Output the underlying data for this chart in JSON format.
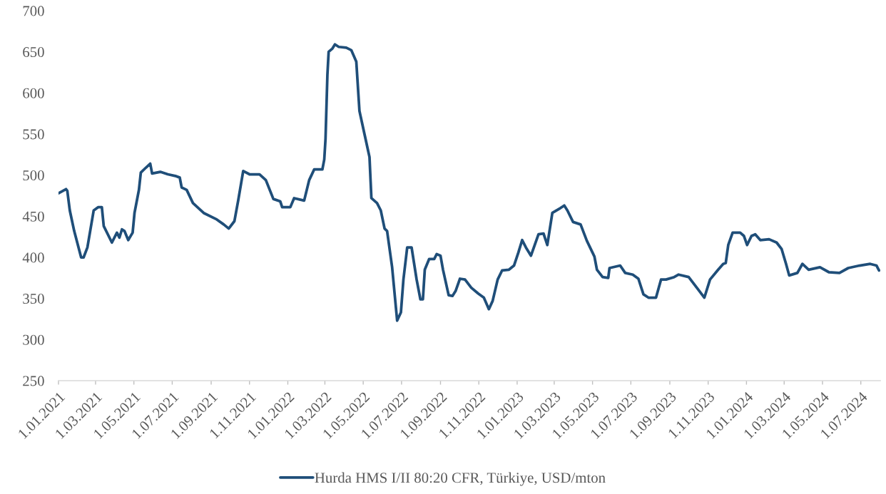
{
  "chart_data": {
    "type": "line",
    "x": [
      "2021-01-01",
      "2021-01-13",
      "2021-01-15",
      "2021-01-19",
      "2021-01-26",
      "2021-02-06",
      "2021-02-10",
      "2021-02-16",
      "2021-02-26",
      "2021-03-05",
      "2021-03-11",
      "2021-03-14",
      "2021-03-27",
      "2021-04-04",
      "2021-04-08",
      "2021-04-12",
      "2021-04-16",
      "2021-04-22",
      "2021-04-29",
      "2021-05-02",
      "2021-05-09",
      "2021-05-12",
      "2021-05-20",
      "2021-05-27",
      "2021-05-30",
      "2021-06-12",
      "2021-06-24",
      "2021-07-06",
      "2021-07-13",
      "2021-07-16",
      "2021-07-24",
      "2021-08-03",
      "2021-08-20",
      "2021-09-10",
      "2021-09-21",
      "2021-09-29",
      "2021-10-08",
      "2021-10-14",
      "2021-10-22",
      "2021-11-01",
      "2021-11-17",
      "2021-11-27",
      "2021-12-09",
      "2021-12-20",
      "2021-12-23",
      "2022-01-05",
      "2022-01-11",
      "2022-01-27",
      "2022-02-04",
      "2022-02-12",
      "2022-02-25",
      "2022-02-28",
      "2022-03-02",
      "2022-03-05",
      "2022-03-07",
      "2022-03-13",
      "2022-03-17",
      "2022-03-23",
      "2022-04-04",
      "2022-04-12",
      "2022-04-20",
      "2022-04-25",
      "2022-05-03",
      "2022-05-11",
      "2022-05-14",
      "2022-05-23",
      "2022-05-29",
      "2022-06-04",
      "2022-06-08",
      "2022-06-16",
      "2022-06-24",
      "2022-06-30",
      "2022-07-04",
      "2022-07-10",
      "2022-07-17",
      "2022-07-25",
      "2022-07-31",
      "2022-08-04",
      "2022-08-07",
      "2022-08-14",
      "2022-08-22",
      "2022-08-26",
      "2022-09-01",
      "2022-09-05",
      "2022-09-14",
      "2022-09-20",
      "2022-09-25",
      "2022-10-02",
      "2022-10-10",
      "2022-10-20",
      "2022-10-31",
      "2022-11-09",
      "2022-11-17",
      "2022-11-23",
      "2022-12-01",
      "2022-12-08",
      "2022-12-19",
      "2022-12-27",
      "2023-01-03",
      "2023-01-09",
      "2023-01-15",
      "2023-01-23",
      "2023-02-04",
      "2023-02-12",
      "2023-02-18",
      "2023-02-26",
      "2023-03-11",
      "2023-03-17",
      "2023-03-22",
      "2023-03-31",
      "2023-04-12",
      "2023-04-22",
      "2023-05-04",
      "2023-05-08",
      "2023-05-17",
      "2023-05-26",
      "2023-05-28",
      "2023-06-14",
      "2023-06-22",
      "2023-07-04",
      "2023-07-13",
      "2023-07-21",
      "2023-07-29",
      "2023-08-10",
      "2023-08-18",
      "2023-08-26",
      "2023-09-08",
      "2023-09-15",
      "2023-10-01",
      "2023-10-14",
      "2023-10-26",
      "2023-11-04",
      "2023-11-17",
      "2023-11-25",
      "2023-11-29",
      "2023-12-03",
      "2023-12-10",
      "2023-12-22",
      "2023-12-28",
      "2024-01-02",
      "2024-01-09",
      "2024-01-15",
      "2024-01-23",
      "2024-02-06",
      "2024-02-18",
      "2024-02-26",
      "2024-03-04",
      "2024-03-09",
      "2024-03-22",
      "2024-03-30",
      "2024-04-09",
      "2024-04-27",
      "2024-05-11",
      "2024-05-28",
      "2024-06-11",
      "2024-06-29",
      "2024-07-16",
      "2024-07-26",
      "2024-07-30"
    ],
    "series": [
      {
        "name": "Hurda HMS I/II 80:20 CFR, Türkiye, USD/mton",
        "color": "#1f4e79",
        "values": [
          478,
          483,
          481,
          457,
          432,
          400,
          400,
          412,
          457,
          461,
          461,
          438,
          418,
          430,
          424,
          434,
          432,
          421,
          430,
          454,
          482,
          503,
          509,
          514,
          502,
          504,
          501,
          499,
          497,
          485,
          482,
          466,
          454,
          446,
          440,
          435,
          444,
          469,
          505,
          501,
          501,
          494,
          471,
          468,
          461,
          461,
          472,
          469,
          494,
          507,
          507,
          519,
          544,
          622,
          650,
          654,
          659,
          656,
          655,
          652,
          638,
          578,
          550,
          522,
          472,
          466,
          457,
          435,
          432,
          388,
          323,
          333,
          373,
          412,
          412,
          373,
          349,
          349,
          385,
          398,
          398,
          404,
          402,
          385,
          354,
          353,
          359,
          374,
          373,
          363,
          356,
          351,
          337,
          347,
          373,
          384,
          385,
          390,
          406,
          421,
          412,
          402,
          428,
          429,
          415,
          454,
          460,
          463,
          457,
          443,
          440,
          420,
          401,
          385,
          376,
          375,
          387,
          390,
          381,
          379,
          374,
          355,
          351,
          351,
          373,
          373,
          376,
          379,
          376,
          363,
          351,
          373,
          385,
          392,
          393,
          415,
          430,
          430,
          426,
          415,
          426,
          428,
          421,
          422,
          418,
          410,
          392,
          378,
          381,
          392,
          385,
          388,
          382,
          381,
          387,
          390,
          392,
          390,
          384
        ]
      }
    ],
    "xlim": [
      "2021-01-01",
      "2024-08-01"
    ],
    "xticks": [
      {
        "value": "2021-01-01",
        "label": "1.01.2021"
      },
      {
        "value": "2021-03-01",
        "label": "1.03.2021"
      },
      {
        "value": "2021-05-01",
        "label": "1.05.2021"
      },
      {
        "value": "2021-07-01",
        "label": "1.07.2021"
      },
      {
        "value": "2021-09-01",
        "label": "1.09.2021"
      },
      {
        "value": "2021-11-01",
        "label": "1.11.2021"
      },
      {
        "value": "2022-01-01",
        "label": "1.01.2022"
      },
      {
        "value": "2022-03-01",
        "label": "1.03.2022"
      },
      {
        "value": "2022-05-01",
        "label": "1.05.2022"
      },
      {
        "value": "2022-07-01",
        "label": "1.07.2022"
      },
      {
        "value": "2022-09-01",
        "label": "1.09.2022"
      },
      {
        "value": "2022-11-01",
        "label": "1.11.2022"
      },
      {
        "value": "2023-01-01",
        "label": "1.01.2023"
      },
      {
        "value": "2023-03-01",
        "label": "1.03.2023"
      },
      {
        "value": "2023-05-01",
        "label": "1.05.2023"
      },
      {
        "value": "2023-07-01",
        "label": "1.07.2023"
      },
      {
        "value": "2023-09-01",
        "label": "1.09.2023"
      },
      {
        "value": "2023-11-01",
        "label": "1.11.2023"
      },
      {
        "value": "2024-01-01",
        "label": "1.01.2024"
      },
      {
        "value": "2024-03-01",
        "label": "1.03.2024"
      },
      {
        "value": "2024-05-01",
        "label": "1.05.2024"
      },
      {
        "value": "2024-07-01",
        "label": "1.07.2024"
      }
    ],
    "ylim": [
      250,
      700
    ],
    "yticks": [
      250,
      300,
      350,
      400,
      450,
      500,
      550,
      600,
      650,
      700
    ],
    "grid": false,
    "legend": "bottom",
    "line_style": "solid"
  }
}
